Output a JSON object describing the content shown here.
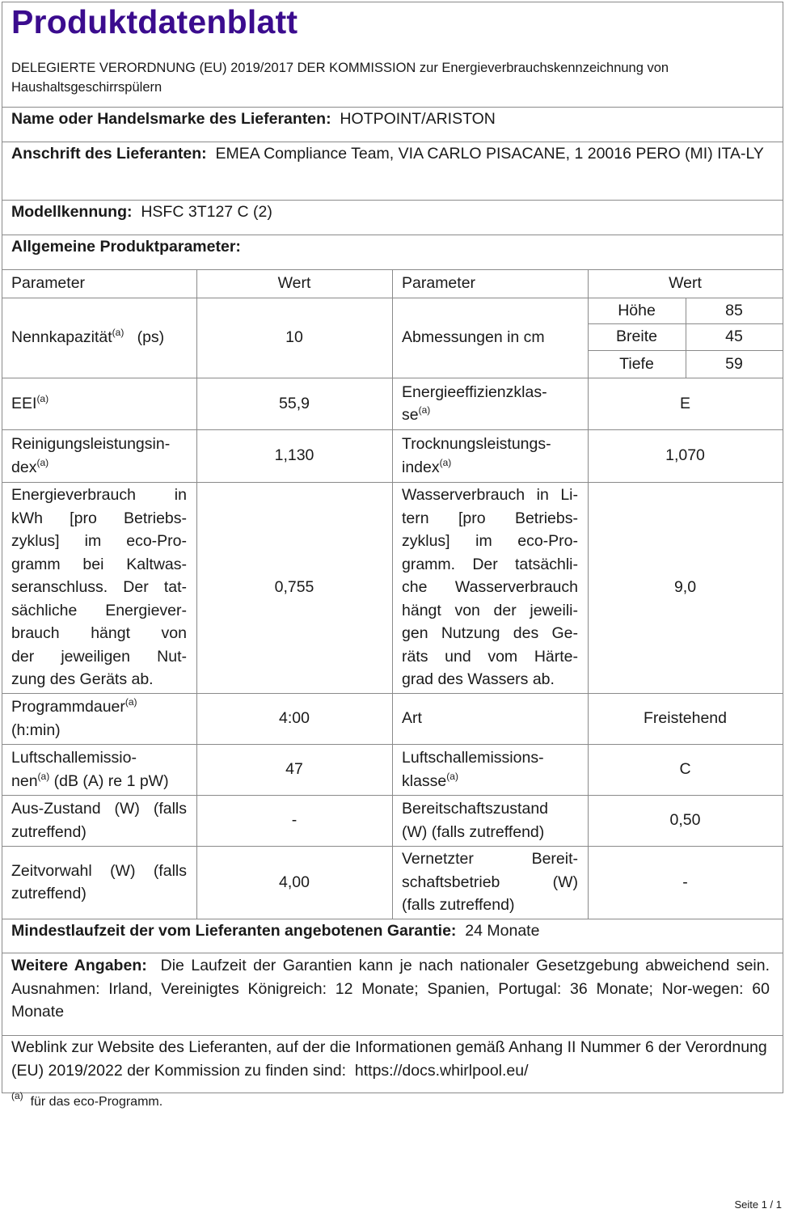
{
  "title": "Produktdatenblatt",
  "subtitle": "DELEGIERTE VERORDNUNG (EU) 2019/2017 DER KOMMISSION zur Energieverbrauchskennzeichnung von Haushaltsgeschirrspülern",
  "supplier": {
    "label": "Name oder Handelsmarke des Lieferanten:",
    "value": "HOTPOINT/ARISTON"
  },
  "address": {
    "label": "Anschrift des Lieferanten:",
    "value": "EMEA Compliance Team, VIA CARLO PISACANE, 1 20016 PERO (MI) ITA-LY"
  },
  "model": {
    "label": "Modellkennung:",
    "value": "HSFC 3T127 C (2)"
  },
  "general": {
    "label": "Allgemeine Produktparameter:"
  },
  "table": {
    "headers": [
      "Parameter",
      "Wert",
      "Parameter",
      "Wert"
    ],
    "footnote_marker": "(a)",
    "rows": [
      {
        "p1": [
          [
            "Nennkapazität",
            "(a)",
            "   (ps)"
          ]
        ],
        "v1": "10",
        "p2": [
          [
            "Abmessungen in cm"
          ]
        ],
        "dims": [
          {
            "label": "Höhe",
            "value": "85"
          },
          {
            "label": "Breite",
            "value": "45"
          },
          {
            "label": "Tiefe",
            "value": "59"
          }
        ]
      },
      {
        "p1": [
          [
            "EEI",
            "(a)",
            ""
          ]
        ],
        "v1": "55,9",
        "p2": [
          [
            "Energieeffizienzklas-"
          ],
          [
            "se",
            "(a)",
            ""
          ]
        ],
        "v2": "E"
      },
      {
        "p1": [
          [
            "Reinigungsleistungsin-"
          ],
          [
            "dex",
            "(a)",
            ""
          ]
        ],
        "v1": "1,130",
        "p2": [
          [
            "Trocknungsleistungs-"
          ],
          [
            "index",
            "(a)",
            ""
          ]
        ],
        "v2": "1,070"
      },
      {
        "p1": [
          [
            "Energieverbrauch in"
          ],
          [
            "kWh [pro Betriebs-"
          ],
          [
            "zyklus] im eco-Pro-"
          ],
          [
            "gramm bei Kaltwas-"
          ],
          [
            "seranschluss. Der tat-"
          ],
          [
            "sächliche Energiever-"
          ],
          [
            "brauch hängt von"
          ],
          [
            "der jeweiligen Nut-"
          ],
          [
            "zung des Geräts ab."
          ]
        ],
        "v1": "0,755",
        "p2": [
          [
            "Wasserverbrauch in Li-"
          ],
          [
            "tern [pro Betriebs-"
          ],
          [
            "zyklus] im eco-Pro-"
          ],
          [
            "gramm. Der tatsächli-"
          ],
          [
            "che Wasserverbrauch"
          ],
          [
            "hängt von der jeweili-"
          ],
          [
            "gen Nutzung des Ge-"
          ],
          [
            "räts und vom Härte-"
          ],
          [
            "grad des Wassers ab."
          ]
        ],
        "v2": "9,0"
      },
      {
        "p1": [
          [
            "Programmdauer",
            "(a)",
            ""
          ],
          [
            " (h:min)"
          ]
        ],
        "v1": "4:00",
        "p2": [
          [
            "Art"
          ]
        ],
        "v2": "Freistehend"
      },
      {
        "p1": [
          [
            "Luftschallemissio-"
          ],
          [
            "nen",
            "(a)",
            " (dB (A) re 1 pW)"
          ]
        ],
        "v1": "47",
        "p2": [
          [
            "Luftschallemissions-"
          ],
          [
            "klasse",
            "(a)",
            ""
          ]
        ],
        "v2": "C"
      },
      {
        "p1": [
          [
            "Aus-Zustand (W) (falls"
          ],
          [
            "zutreffend)"
          ]
        ],
        "v1": "-",
        "p2": [
          [
            "Bereitschaftszustand"
          ],
          [
            "(W) (falls zutreffend)"
          ]
        ],
        "v2": "0,50"
      },
      {
        "p1": [
          [
            "Zeitvorwahl (W) (falls"
          ],
          [
            "zutreffend)"
          ]
        ],
        "v1": "4,00",
        "p2": [
          [
            "Vernetzter Bereit-"
          ],
          [
            "schaftsbetrieb (W)"
          ],
          [
            "(falls zutreffend)"
          ]
        ],
        "v2": "-"
      }
    ]
  },
  "warranty": {
    "label": "Mindestlaufzeit der vom Lieferanten angebotenen Garantie:",
    "value": "24 Monate"
  },
  "further": {
    "label": "Weitere Angaben:",
    "value": "Die Laufzeit der Garantien kann je nach nationaler Gesetzgebung abweichend sein. Ausnahmen: Irland, Vereinigtes Königreich: 12 Monate; Spanien, Portugal: 36 Monate; Nor-wegen: 60 Monate"
  },
  "weblink": {
    "text": "Weblink zur Website des Lieferanten, auf der die Informationen gemäß Anhang II Nummer 6 der Verordnung (EU) 2019/2022 der Kommission zu finden sind:",
    "url": "https://docs.whirlpool.eu/"
  },
  "footnote": {
    "marker": "(a)",
    "text": "für das eco-Programm."
  },
  "page": "Seite 1 / 1",
  "colors": {
    "title": "#3b0c8e",
    "border": "#8a8a8a"
  }
}
